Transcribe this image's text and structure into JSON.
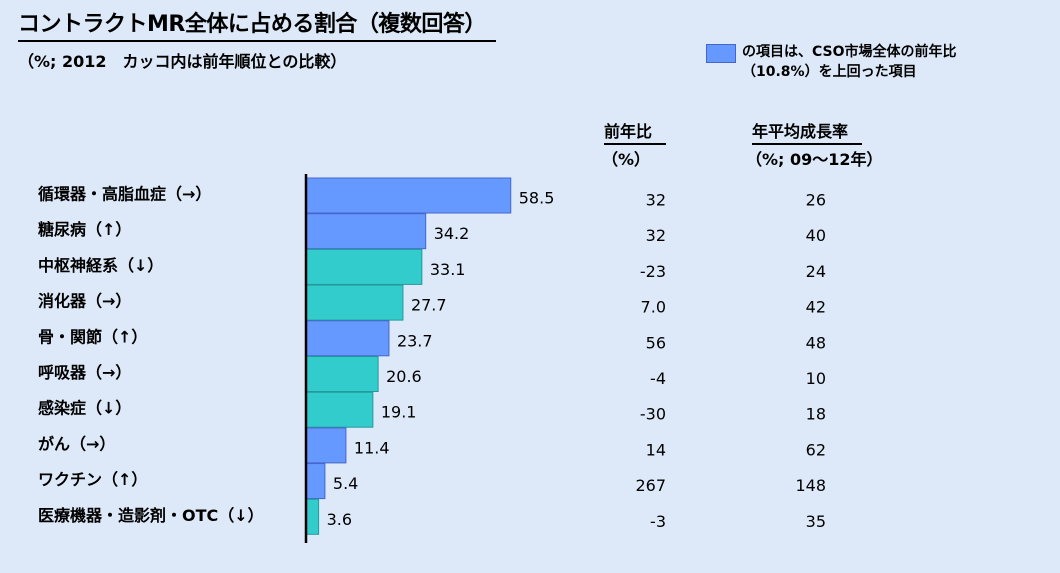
{
  "title": "コントラクトMR全体に占める割合（複数回答）",
  "subtitle": "（%; 2012　カッコ内は前年順位との比較）",
  "legend": {
    "text": "の項目は、CSO市場全体の前年比\n（10.8%）を上回った項目",
    "color": "#6699ff"
  },
  "columns": {
    "yoy_header": "前年比",
    "yoy_unit": "（%）",
    "cagr_header": "年平均成長率",
    "cagr_unit": "（%; 09〜12年）"
  },
  "colors": {
    "above": "#6699ff",
    "below": "#33cccc"
  },
  "chart_data": {
    "type": "bar",
    "orientation": "horizontal",
    "categories": [
      "循環器・高脂血症（→）",
      "糖尿病（↑）",
      "中枢神経系（↓）",
      "消化器（→）",
      "骨・関節（↑）",
      "呼吸器（→）",
      "感染症（↓）",
      "がん（→）",
      "ワクチン（↑）",
      "医療機器・造影剤・OTC（↓）"
    ],
    "values": [
      58.5,
      34.2,
      33.1,
      27.7,
      23.7,
      20.6,
      19.1,
      11.4,
      5.4,
      3.6
    ],
    "value_labels": [
      "58.5",
      "34.2",
      "33.1",
      "27.7",
      "23.7",
      "20.6",
      "19.1",
      "11.4",
      "5.4",
      "3.6"
    ],
    "above_market": [
      true,
      true,
      false,
      false,
      true,
      false,
      false,
      true,
      true,
      false
    ],
    "yoy": [
      "32",
      "32",
      "-23",
      "7.0",
      "56",
      "-4",
      "-30",
      "14",
      "267",
      "-3"
    ],
    "cagr": [
      "26",
      "40",
      "24",
      "42",
      "48",
      "10",
      "18",
      "62",
      "148",
      "35"
    ],
    "xlim": [
      0,
      60
    ]
  }
}
